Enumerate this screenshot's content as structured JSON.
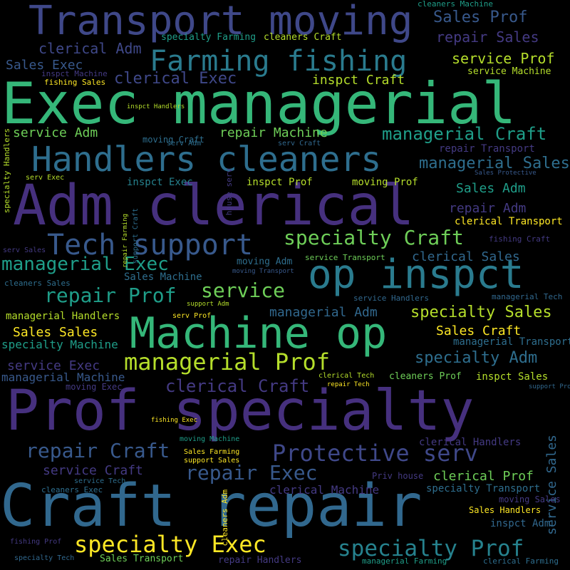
{
  "palette": {
    "background": "#000000",
    "dark_purple": "#46307e",
    "indigo": "#3f4889",
    "slate_blue": "#38598c",
    "blue_teal": "#31688e",
    "teal": "#26828e",
    "green_teal": "#1f9e89",
    "green": "#35b779",
    "bright_green": "#6ece58",
    "lime": "#b5de2b",
    "yellow": "#fde725"
  },
  "words": [
    {
      "text": "Transport moving",
      "color": "#3f4889"
    },
    {
      "text": "Exec managerial",
      "color": "#35b779"
    },
    {
      "text": "Adm clerical",
      "color": "#46307e"
    },
    {
      "text": "Prof specialty",
      "color": "#46307e"
    },
    {
      "text": "Craft repair",
      "color": "#31688e"
    },
    {
      "text": "Machine op",
      "color": "#35b779"
    },
    {
      "text": "op inspct",
      "color": "#2a7b8e"
    },
    {
      "text": "Handlers cleaners",
      "color": "#2e6e8e"
    },
    {
      "text": "Farming fishing",
      "color": "#2a7b8e"
    },
    {
      "text": "Tech support",
      "color": "#38598c"
    },
    {
      "text": "managerial Prof",
      "color": "#b5de2b"
    },
    {
      "text": "specialty Exec",
      "color": "#fde725"
    },
    {
      "text": "Protective serv",
      "color": "#3f4889"
    },
    {
      "text": "specialty Prof",
      "color": "#26828e"
    },
    {
      "text": "specialty Craft",
      "color": "#6ece58"
    },
    {
      "text": "repair Prof",
      "color": "#1f9e89"
    },
    {
      "text": "service",
      "color": "#6ece58"
    },
    {
      "text": "repair Exec",
      "color": "#38598c"
    },
    {
      "text": "repair Craft",
      "color": "#38598c"
    },
    {
      "text": "managerial Exec",
      "color": "#1f9e89"
    },
    {
      "text": "managerial Craft",
      "color": "#1f9e89"
    },
    {
      "text": "clerical Craft",
      "color": "#443a83"
    },
    {
      "text": "specialty Sales",
      "color": "#b5de2b"
    },
    {
      "text": "specialty Adm",
      "color": "#2e6e8e"
    },
    {
      "text": "clerical Exec",
      "color": "#3f4889"
    },
    {
      "text": "managerial Sales",
      "color": "#2e6e8e"
    },
    {
      "text": "Sales Prof",
      "color": "#38598c"
    },
    {
      "text": "repair Sales",
      "color": "#443a83"
    },
    {
      "text": "clerical Adm",
      "color": "#3f4889"
    },
    {
      "text": "service Prof",
      "color": "#b5de2b"
    },
    {
      "text": "inspct Craft",
      "color": "#b5de2b"
    },
    {
      "text": "Sales Exec",
      "color": "#38598c"
    },
    {
      "text": "service Adm",
      "color": "#6ece58"
    },
    {
      "text": "repair Machine",
      "color": "#6ece58"
    },
    {
      "text": "Sales Adm",
      "color": "#1f9e89"
    },
    {
      "text": "repair Adm",
      "color": "#443a83"
    },
    {
      "text": "managerial Adm",
      "color": "#31688e"
    },
    {
      "text": "clerical Sales",
      "color": "#31688e"
    },
    {
      "text": "Sales Sales",
      "color": "#fde725"
    },
    {
      "text": "Sales Craft",
      "color": "#fde725"
    },
    {
      "text": "specialty Machine",
      "color": "#1f9e89"
    },
    {
      "text": "service Exec",
      "color": "#443a83"
    },
    {
      "text": "managerial Machine",
      "color": "#38598c"
    },
    {
      "text": "service Craft",
      "color": "#443a83"
    },
    {
      "text": "clerical Prof",
      "color": "#6ece58"
    },
    {
      "text": "service Sales",
      "color": "#31688e"
    },
    {
      "text": "specialty Transport",
      "color": "#2e6e8e"
    },
    {
      "text": "Sales Machine",
      "color": "#2e6e8e"
    },
    {
      "text": "clerical Machine",
      "color": "#443a83"
    },
    {
      "text": "repair Transport",
      "color": "#443a83"
    },
    {
      "text": "inspct Prof",
      "color": "#b5de2b"
    },
    {
      "text": "inspct Exec",
      "color": "#26828e"
    },
    {
      "text": "moving Prof",
      "color": "#b5de2b"
    },
    {
      "text": "managerial Handlers",
      "color": "#b5de2b"
    },
    {
      "text": "managerial Transport",
      "color": "#2e6e8e"
    },
    {
      "text": "inspct Sales",
      "color": "#b5de2b"
    },
    {
      "text": "cleaners Prof",
      "color": "#6ece58"
    },
    {
      "text": "clerical Transport",
      "color": "#fde725"
    },
    {
      "text": "inspct Adm",
      "color": "#31688e"
    },
    {
      "text": "Sales Handlers",
      "color": "#fde725"
    },
    {
      "text": "clerical Handlers",
      "color": "#443a83"
    },
    {
      "text": "specialty Farming",
      "color": "#1f9e89"
    },
    {
      "text": "cleaners Craft",
      "color": "#b5de2b"
    },
    {
      "text": "service Machine",
      "color": "#b5de2b"
    },
    {
      "text": "fishing Sales",
      "color": "#fde725"
    },
    {
      "text": "inspct Machine",
      "color": "#443a83"
    },
    {
      "text": "inspct Handlers",
      "color": "#b5de2b"
    },
    {
      "text": "Sales Transport",
      "color": "#6ece58"
    },
    {
      "text": "repair Handlers",
      "color": "#443a83"
    },
    {
      "text": "managerial Farming",
      "color": "#1f9e89"
    },
    {
      "text": "clerical Farming",
      "color": "#2e6e8e"
    },
    {
      "text": "moving Sales",
      "color": "#443a83"
    },
    {
      "text": "cleaners Machine",
      "color": "#1f9e89"
    },
    {
      "text": "specialty Handlers",
      "color": "#b5de2b"
    },
    {
      "text": "managerial Tech",
      "color": "#31688e"
    },
    {
      "text": "cleaners Exec",
      "color": "#2e6e8e"
    },
    {
      "text": "cleaners Sales",
      "color": "#2e6e8e"
    },
    {
      "text": "service Handlers",
      "color": "#31688e"
    },
    {
      "text": "service Transport",
      "color": "#6ece58"
    },
    {
      "text": "moving Craft",
      "color": "#2e6e8e"
    },
    {
      "text": "moving Adm",
      "color": "#2e6e8e"
    },
    {
      "text": "moving Exec",
      "color": "#443a83"
    },
    {
      "text": "moving Machine",
      "color": "#1f9e89"
    },
    {
      "text": "moving Transport",
      "color": "#38598c"
    },
    {
      "text": "serv Adm",
      "color": "#2e6e8e"
    },
    {
      "text": "serv Craft",
      "color": "#31688e"
    },
    {
      "text": "serv Exec",
      "color": "#b5de2b"
    },
    {
      "text": "serv Sales",
      "color": "#443a83"
    },
    {
      "text": "serv Prof",
      "color": "#fde725"
    },
    {
      "text": "support Craft",
      "color": "#2e6e8e"
    },
    {
      "text": "support Adm",
      "color": "#b5de2b"
    },
    {
      "text": "support Prof",
      "color": "#31688e"
    },
    {
      "text": "support Sales",
      "color": "#fde725"
    },
    {
      "text": "Sales Protective",
      "color": "#38598c"
    },
    {
      "text": "fishing Craft",
      "color": "#443a83"
    },
    {
      "text": "fishing Exec",
      "color": "#fde725"
    },
    {
      "text": "fishing Prof",
      "color": "#443a83"
    },
    {
      "text": "repair Farming",
      "color": "#b5de2b"
    },
    {
      "text": "house serv",
      "color": "#443a83"
    },
    {
      "text": "Priv house",
      "color": "#443a83"
    },
    {
      "text": "clerical Tech",
      "color": "#b5de2b"
    },
    {
      "text": "repair Tech",
      "color": "#fde725"
    },
    {
      "text": "service Tech",
      "color": "#2e6e8e"
    },
    {
      "text": "specialty Tech",
      "color": "#31688e"
    },
    {
      "text": "Sales Farming",
      "color": "#fde725"
    },
    {
      "text": "cleaners Adm",
      "color": "#fde725"
    }
  ]
}
